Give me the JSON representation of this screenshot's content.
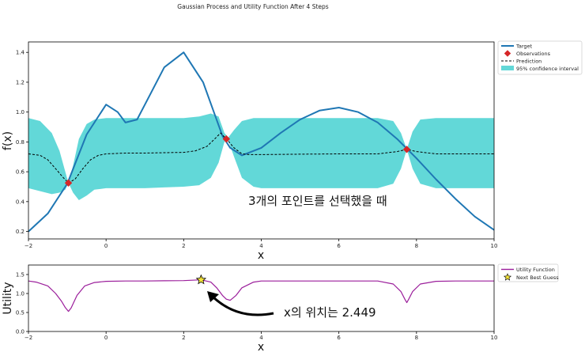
{
  "figure_title": "Gaussian Process and Utility Function After 4 Steps",
  "chart_data": [
    {
      "type": "line",
      "xlabel": "x",
      "ylabel": "f(x)",
      "xlim": [
        -2,
        10
      ],
      "ylim": [
        0.15,
        1.47
      ],
      "xticks": [
        "−2",
        "0",
        "2",
        "4",
        "6",
        "8",
        "10"
      ],
      "yticks": [
        "0.2",
        "0.4",
        "0.6",
        "0.8",
        "1.0",
        "1.2",
        "1.4"
      ],
      "grid": false,
      "legend_position": "outside-right",
      "legend": [
        "Target",
        "Observations",
        "Prediction",
        "95% confidence interval"
      ],
      "annotation": "3개의 포인트를 선택했을 때",
      "target": {
        "color": "#1f77b4",
        "x": [
          -2.0,
          -1.5,
          -1.0,
          -0.5,
          0.0,
          0.3,
          0.5,
          0.8,
          1.0,
          1.5,
          2.0,
          2.5,
          3.0,
          3.2,
          3.5,
          4.0,
          4.5,
          5.0,
          5.5,
          6.0,
          6.5,
          7.0,
          7.5,
          8.0,
          8.5,
          9.0,
          9.5,
          10.0
        ],
        "y": [
          0.2,
          0.32,
          0.52,
          0.85,
          1.05,
          1.0,
          0.93,
          0.95,
          1.05,
          1.3,
          1.4,
          1.2,
          0.84,
          0.76,
          0.71,
          0.76,
          0.86,
          0.95,
          1.01,
          1.03,
          1.0,
          0.93,
          0.82,
          0.69,
          0.55,
          0.42,
          0.3,
          0.21
        ]
      },
      "observations": {
        "color": "#d62728",
        "x": [
          -0.97,
          3.1,
          7.75
        ],
        "y": [
          0.525,
          0.82,
          0.75
        ]
      },
      "prediction": {
        "x": [
          -2.0,
          -1.7,
          -1.5,
          -1.3,
          -1.1,
          -0.97,
          -0.8,
          -0.6,
          -0.4,
          -0.2,
          0.0,
          0.5,
          1.0,
          1.5,
          2.0,
          2.3,
          2.6,
          2.8,
          2.95,
          3.1,
          3.3,
          3.5,
          3.7,
          4.0,
          5.0,
          6.0,
          7.0,
          7.5,
          7.75,
          8.0,
          8.5,
          9.0,
          10.0
        ],
        "y": [
          0.72,
          0.71,
          0.68,
          0.62,
          0.56,
          0.525,
          0.55,
          0.62,
          0.68,
          0.71,
          0.72,
          0.725,
          0.725,
          0.728,
          0.73,
          0.74,
          0.77,
          0.82,
          0.86,
          0.82,
          0.76,
          0.72,
          0.715,
          0.715,
          0.718,
          0.72,
          0.72,
          0.735,
          0.75,
          0.735,
          0.72,
          0.72,
          0.72
        ]
      },
      "confidence_interval": {
        "color": "#40d0d0",
        "x": [
          -2.0,
          -1.7,
          -1.4,
          -1.2,
          -1.05,
          -0.97,
          -0.85,
          -0.7,
          -0.5,
          -0.3,
          0.0,
          0.5,
          1.0,
          1.5,
          2.0,
          2.4,
          2.7,
          2.9,
          3.05,
          3.15,
          3.3,
          3.5,
          3.8,
          4.0,
          5.0,
          6.0,
          7.0,
          7.4,
          7.6,
          7.75,
          7.9,
          8.1,
          8.5,
          9.0,
          10.0
        ],
        "upper": [
          0.96,
          0.94,
          0.86,
          0.74,
          0.6,
          0.525,
          0.64,
          0.82,
          0.92,
          0.95,
          0.96,
          0.96,
          0.96,
          0.96,
          0.96,
          0.97,
          0.99,
          0.97,
          0.86,
          0.83,
          0.88,
          0.94,
          0.96,
          0.96,
          0.96,
          0.96,
          0.96,
          0.94,
          0.86,
          0.75,
          0.87,
          0.95,
          0.96,
          0.96,
          0.96
        ],
        "lower": [
          0.49,
          0.47,
          0.45,
          0.46,
          0.48,
          0.525,
          0.46,
          0.41,
          0.44,
          0.48,
          0.49,
          0.49,
          0.49,
          0.495,
          0.5,
          0.51,
          0.56,
          0.66,
          0.8,
          0.81,
          0.7,
          0.56,
          0.5,
          0.49,
          0.49,
          0.49,
          0.49,
          0.52,
          0.62,
          0.75,
          0.62,
          0.52,
          0.49,
          0.49,
          0.49
        ]
      }
    },
    {
      "type": "line",
      "xlabel": "x",
      "ylabel": "Utility",
      "xlim": [
        -2,
        10
      ],
      "ylim": [
        0,
        1.75
      ],
      "xticks": [
        "−2",
        "0",
        "2",
        "4",
        "6",
        "8",
        "10"
      ],
      "yticks": [
        "0.0",
        "0.5",
        "1.0",
        "1.5"
      ],
      "grid": false,
      "legend_position": "outside-right",
      "legend": [
        "Utility Function",
        "Next Best Guess"
      ],
      "annotation": "x의 위치는 2.449",
      "utility": {
        "color": "#9b1e9b",
        "x": [
          -2.0,
          -1.8,
          -1.5,
          -1.3,
          -1.15,
          -1.05,
          -0.97,
          -0.9,
          -0.75,
          -0.55,
          -0.3,
          0.0,
          0.5,
          1.0,
          1.5,
          2.0,
          2.449,
          2.7,
          2.85,
          3.0,
          3.1,
          3.2,
          3.35,
          3.5,
          3.8,
          4.0,
          5.0,
          6.0,
          7.0,
          7.4,
          7.6,
          7.7,
          7.75,
          7.8,
          7.9,
          8.1,
          8.5,
          9.0,
          10.0
        ],
        "y": [
          1.33,
          1.3,
          1.2,
          1.0,
          0.8,
          0.63,
          0.53,
          0.62,
          0.95,
          1.2,
          1.29,
          1.32,
          1.33,
          1.33,
          1.335,
          1.34,
          1.36,
          1.3,
          1.15,
          0.95,
          0.85,
          0.82,
          0.95,
          1.15,
          1.3,
          1.33,
          1.33,
          1.33,
          1.33,
          1.25,
          1.05,
          0.85,
          0.76,
          0.85,
          1.05,
          1.25,
          1.32,
          1.33,
          1.33
        ]
      },
      "next_best_guess": {
        "x": 2.449,
        "y": 1.36,
        "color": "#f2e23a"
      }
    }
  ]
}
